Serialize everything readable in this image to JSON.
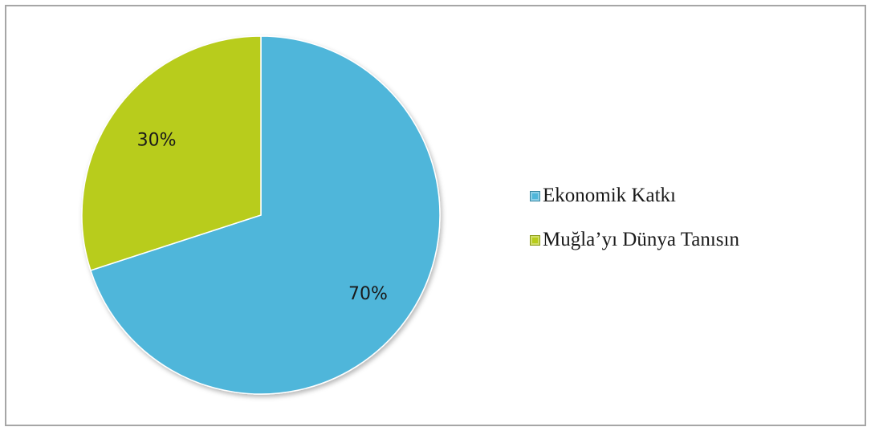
{
  "chart_data": {
    "type": "pie",
    "categories": [
      "Ekonomik Katkı",
      "Muğla’yı Dünya Tanısın"
    ],
    "values": [
      70,
      30
    ],
    "labels": [
      "70%",
      "30%"
    ],
    "colors": [
      "#4fb6da",
      "#b8cc1a"
    ],
    "legend_position": "right"
  }
}
